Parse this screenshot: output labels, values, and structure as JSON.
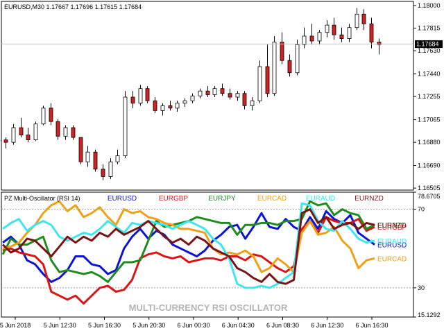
{
  "price_chart": {
    "header": "EURUSD,M30  1.17667 1.17696 1.17615 1.17684",
    "price_ticks": [
      "1.18000",
      "1.17815",
      "1.17630",
      "1.17440",
      "1.17255",
      "1.17065",
      "1.16880",
      "1.16690",
      "1.16505"
    ],
    "current_price": "1.17684",
    "colors": {
      "bull": "#ffffff",
      "bear": "#d22222",
      "wick": "#000000",
      "price_line": "#c0c0c0",
      "price_badge": "#000000"
    }
  },
  "oscillator": {
    "title": "PZ Multi-Oscillator (RSI 14)",
    "watermark": "MULTI-CURRENCY RSI OSCILLATOR",
    "level_ticks": [
      "78.6705",
      "70",
      "30",
      "15.1292"
    ],
    "levels": {
      "upper": 70,
      "lower": 30,
      "max": 78.6705,
      "min": 15.1292
    }
  },
  "time_ticks": [
    "5 Jun 2018",
    "5 Jun 12:30",
    "5 Jun 16:30",
    "5 Jun 20:30",
    "6 Jun 00:30",
    "6 Jun 04:30",
    "6 Jun 08:30",
    "6 Jun 12:30",
    "6 Jun 16:30"
  ],
  "chart_data": [
    {
      "type": "candlestick",
      "title": "EURUSD,M30",
      "ylim": [
        1.165,
        1.18
      ],
      "ohlc": [
        [
          1.169,
          1.1692,
          1.1683,
          1.1688
        ],
        [
          1.1688,
          1.1703,
          1.1686,
          1.17
        ],
        [
          1.17,
          1.1708,
          1.1692,
          1.1694
        ],
        [
          1.1694,
          1.17,
          1.1688,
          1.169
        ],
        [
          1.169,
          1.1705,
          1.1689,
          1.1703
        ],
        [
          1.1703,
          1.1718,
          1.1702,
          1.1716
        ],
        [
          1.1716,
          1.172,
          1.1702,
          1.1705
        ],
        [
          1.1705,
          1.1707,
          1.169,
          1.1693
        ],
        [
          1.1693,
          1.1702,
          1.169,
          1.17
        ],
        [
          1.17,
          1.1702,
          1.169,
          1.1692
        ],
        [
          1.1692,
          1.1692,
          1.167,
          1.1672
        ],
        [
          1.1672,
          1.1685,
          1.1668,
          1.168
        ],
        [
          1.168,
          1.1682,
          1.1664,
          1.1666
        ],
        [
          1.1666,
          1.167,
          1.1657,
          1.166
        ],
        [
          1.166,
          1.1675,
          1.1658,
          1.1672
        ],
        [
          1.1672,
          1.1682,
          1.167,
          1.1677
        ],
        [
          1.1677,
          1.173,
          1.1675,
          1.1725
        ],
        [
          1.1725,
          1.173,
          1.1716,
          1.172
        ],
        [
          1.172,
          1.1735,
          1.1718,
          1.1732
        ],
        [
          1.1732,
          1.1734,
          1.172,
          1.1722
        ],
        [
          1.1722,
          1.1725,
          1.1712,
          1.1714
        ],
        [
          1.1714,
          1.172,
          1.171,
          1.1718
        ],
        [
          1.1718,
          1.1722,
          1.1714,
          1.1716
        ],
        [
          1.1716,
          1.1722,
          1.1713,
          1.172
        ],
        [
          1.172,
          1.1724,
          1.1717,
          1.1722
        ],
        [
          1.1722,
          1.1728,
          1.172,
          1.1726
        ],
        [
          1.1726,
          1.1732,
          1.1724,
          1.173
        ],
        [
          1.173,
          1.1734,
          1.1725,
          1.1727
        ],
        [
          1.1727,
          1.1734,
          1.1725,
          1.1732
        ],
        [
          1.1732,
          1.1736,
          1.1726,
          1.1728
        ],
        [
          1.1728,
          1.1732,
          1.1723,
          1.1725
        ],
        [
          1.1725,
          1.173,
          1.1722,
          1.1728
        ],
        [
          1.1728,
          1.173,
          1.1715,
          1.1718
        ],
        [
          1.1718,
          1.1725,
          1.1714,
          1.1722
        ],
        [
          1.1722,
          1.1755,
          1.172,
          1.175
        ],
        [
          1.175,
          1.1768,
          1.1725,
          1.1728
        ],
        [
          1.1728,
          1.1775,
          1.1726,
          1.177
        ],
        [
          1.177,
          1.1778,
          1.1752,
          1.1755
        ],
        [
          1.1755,
          1.176,
          1.1742,
          1.1745
        ],
        [
          1.1745,
          1.1772,
          1.1743,
          1.1768
        ],
        [
          1.1768,
          1.1782,
          1.1765,
          1.1775
        ],
        [
          1.1775,
          1.1785,
          1.1768,
          1.1771
        ],
        [
          1.1771,
          1.178,
          1.1768,
          1.1778
        ],
        [
          1.1778,
          1.1788,
          1.1774,
          1.1784
        ],
        [
          1.1784,
          1.179,
          1.1772,
          1.1776
        ],
        [
          1.1776,
          1.1782,
          1.177,
          1.1773
        ],
        [
          1.1773,
          1.1785,
          1.177,
          1.1782
        ],
        [
          1.1782,
          1.1798,
          1.178,
          1.1793
        ],
        [
          1.1793,
          1.1797,
          1.178,
          1.1785
        ],
        [
          1.1785,
          1.179,
          1.1765,
          1.177
        ],
        [
          1.177,
          1.1773,
          1.176,
          1.1768
        ]
      ]
    },
    {
      "type": "line",
      "title": "PZ Multi-Oscillator (RSI 14)",
      "ylim": [
        15.1292,
        78.6705
      ],
      "series": [
        {
          "name": "EURUSD",
          "color": "#0a14d2",
          "values": [
            53,
            56,
            52,
            44,
            42,
            37,
            33,
            35,
            39,
            46,
            46,
            42,
            41,
            37,
            39,
            50,
            56,
            60,
            55,
            59,
            57,
            52,
            50,
            48,
            46,
            49,
            54,
            57,
            61,
            62,
            55,
            61,
            68,
            61,
            60,
            65,
            61,
            59,
            66,
            60,
            69,
            65,
            63,
            67,
            58,
            55,
            52
          ]
        },
        {
          "name": "EURGBP",
          "color": "#dc1414",
          "values": [
            49,
            50,
            48,
            47,
            46,
            42,
            28,
            26,
            24,
            26,
            22,
            26,
            30,
            31,
            28,
            29,
            34,
            45,
            47,
            48,
            46,
            45,
            46,
            43,
            44,
            45,
            45,
            44,
            46,
            46,
            44,
            47,
            46,
            43,
            40,
            38,
            41,
            60,
            64,
            58,
            66,
            64,
            63,
            63,
            65,
            59,
            61
          ]
        },
        {
          "name": "EURJPY",
          "color": "#1e8c1e",
          "values": [
            47,
            55,
            52,
            52,
            54,
            56,
            44,
            38,
            39,
            38,
            37,
            38,
            36,
            33,
            38,
            43,
            43,
            44,
            54,
            64,
            61,
            62,
            63,
            64,
            66,
            65,
            64,
            63,
            63,
            57,
            62,
            62,
            63,
            63,
            62,
            64,
            64,
            65,
            74,
            72,
            73,
            67,
            70,
            68,
            67,
            60,
            62
          ]
        },
        {
          "name": "EURCAD",
          "color": "#f0a014",
          "values": [
            50,
            51,
            53,
            58,
            62,
            68,
            72,
            74,
            69,
            72,
            66,
            68,
            71,
            66,
            62,
            70,
            68,
            69,
            66,
            65,
            63,
            62,
            60,
            60,
            59,
            58,
            50,
            47,
            48,
            47,
            49,
            46,
            38,
            40,
            45,
            42,
            38,
            58,
            64,
            57,
            58,
            61,
            54,
            50,
            40,
            44,
            45
          ]
        },
        {
          "name": "EURAUD",
          "color": "#3ce6f0",
          "values": [
            60,
            63,
            65,
            59,
            62,
            64,
            62,
            56,
            54,
            56,
            58,
            57,
            60,
            64,
            61,
            58,
            63,
            62,
            64,
            63,
            62,
            60,
            62,
            64,
            62,
            60,
            55,
            52,
            45,
            32,
            30,
            30,
            31,
            30,
            32,
            35,
            38,
            73,
            72,
            64,
            60,
            59,
            64,
            60,
            55,
            53,
            54
          ]
        },
        {
          "name": "EURNZD",
          "color": "#781414",
          "values": [
            52,
            48,
            50,
            55,
            54,
            50,
            46,
            51,
            56,
            53,
            56,
            54,
            58,
            56,
            60,
            57,
            59,
            61,
            64,
            60,
            56,
            53,
            55,
            52,
            56,
            54,
            50,
            48,
            46,
            40,
            38,
            35,
            33,
            37,
            33,
            32,
            34,
            68,
            70,
            63,
            66,
            60,
            62,
            63,
            60,
            63,
            62
          ]
        }
      ]
    }
  ]
}
